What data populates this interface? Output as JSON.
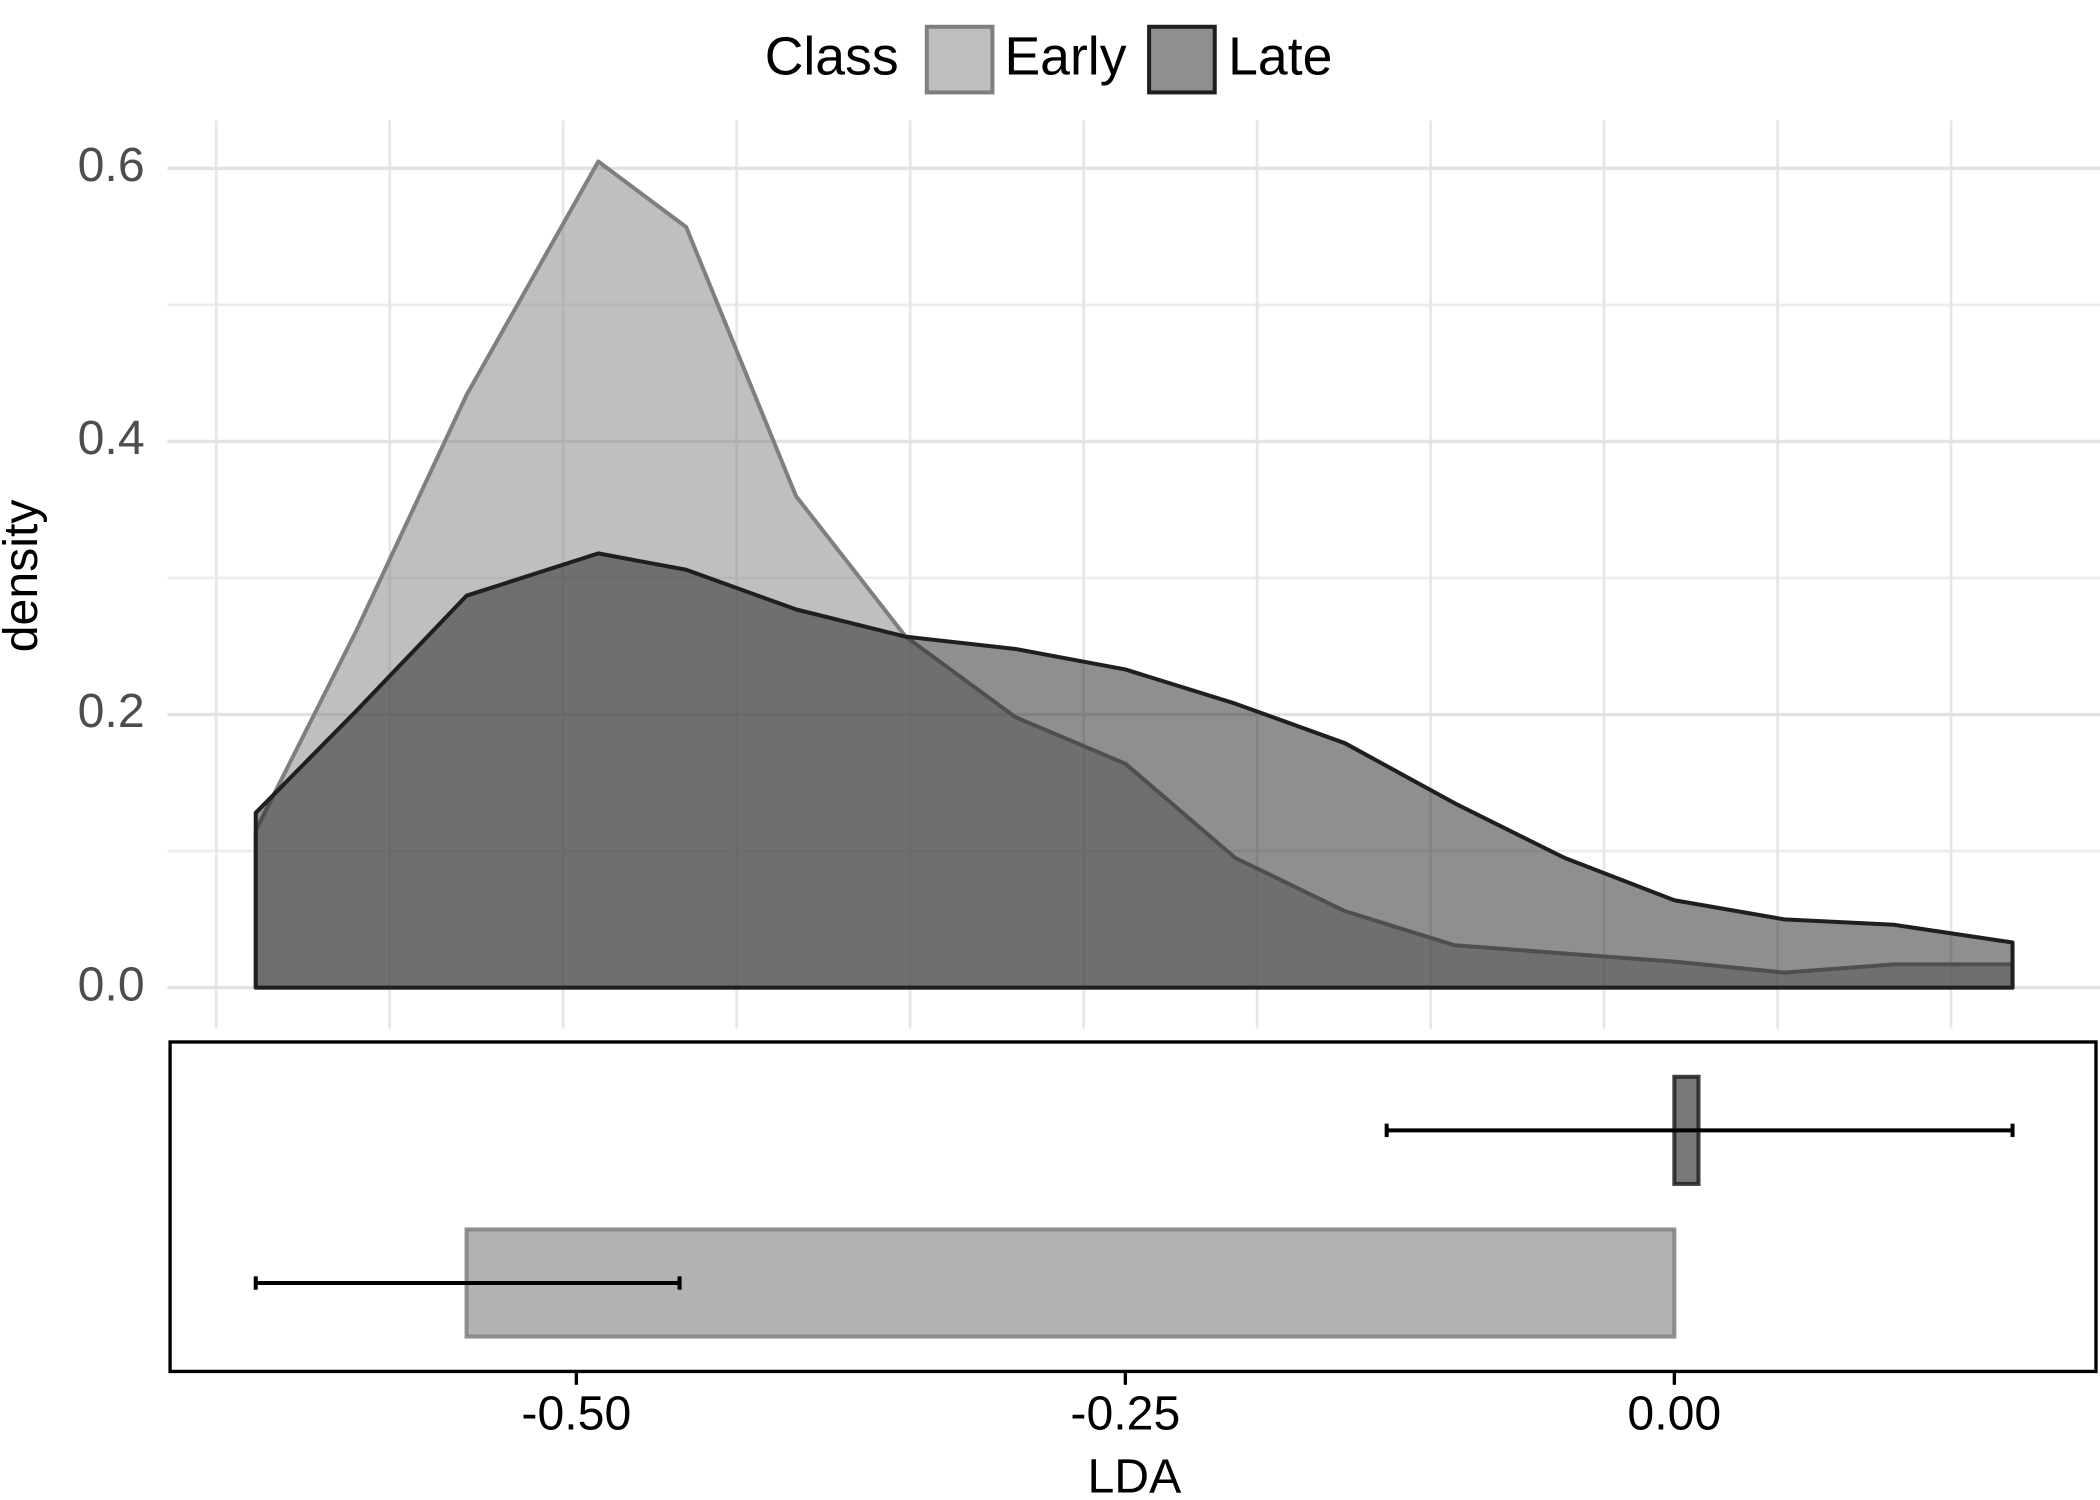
{
  "chart_data": [
    {
      "type": "area",
      "y_label": "density",
      "legend_title": "Class",
      "legend_position": "top",
      "fill_opacity": 0.5,
      "xlim": [
        -0.685,
        0.192
      ],
      "ylim": [
        -0.03,
        0.635
      ],
      "yticks": [
        {
          "value": 0,
          "label": "0.0"
        },
        0.2,
        0.4,
        0.6
      ],
      "yminor": [
        0.1,
        0.3,
        0.5
      ],
      "xgrid": [
        -0.664,
        -0.585,
        -0.506,
        -0.427,
        -0.348,
        -0.269,
        -0.19,
        -0.111,
        -0.032,
        0.047,
        0.126
      ],
      "grid": true,
      "x": [
        -0.646,
        -0.6,
        -0.55,
        -0.49,
        -0.45,
        -0.4,
        -0.35,
        -0.3,
        -0.25,
        -0.2,
        -0.15,
        -0.1,
        -0.05,
        0.0,
        0.05,
        0.1,
        0.154
      ],
      "series": [
        {
          "name": "Early",
          "color": "#7f7f7f",
          "values": [
            0.115,
            0.262,
            0.434,
            0.605,
            0.557,
            0.36,
            0.257,
            0.198,
            0.164,
            0.095,
            0.056,
            0.031,
            0.025,
            0.019,
            0.011,
            0.017,
            0.017
          ]
        },
        {
          "name": "Late",
          "color": "#1f1f1f",
          "values": [
            0.128,
            0.203,
            0.287,
            0.318,
            0.306,
            0.277,
            0.257,
            0.248,
            0.233,
            0.208,
            0.179,
            0.135,
            0.095,
            0.064,
            0.05,
            0.046,
            0.033
          ]
        }
      ]
    },
    {
      "type": "bar",
      "orientation": "horizontal",
      "x_label": "LDA",
      "fill_opacity": 0.6,
      "xlim": [
        -0.685,
        0.192
      ],
      "xticks": [
        {
          "value": -0.5,
          "label": "-0.50"
        },
        {
          "value": -0.25,
          "label": "-0.25"
        },
        {
          "value": 0,
          "label": "0.00"
        }
      ],
      "colors": [
        "#7f7f7f",
        "#1f1f1f"
      ],
      "values": [
        -0.55,
        0.011
      ],
      "error_low": [
        -0.646,
        -0.131
      ],
      "error_high": [
        -0.453,
        0.154
      ]
    }
  ]
}
